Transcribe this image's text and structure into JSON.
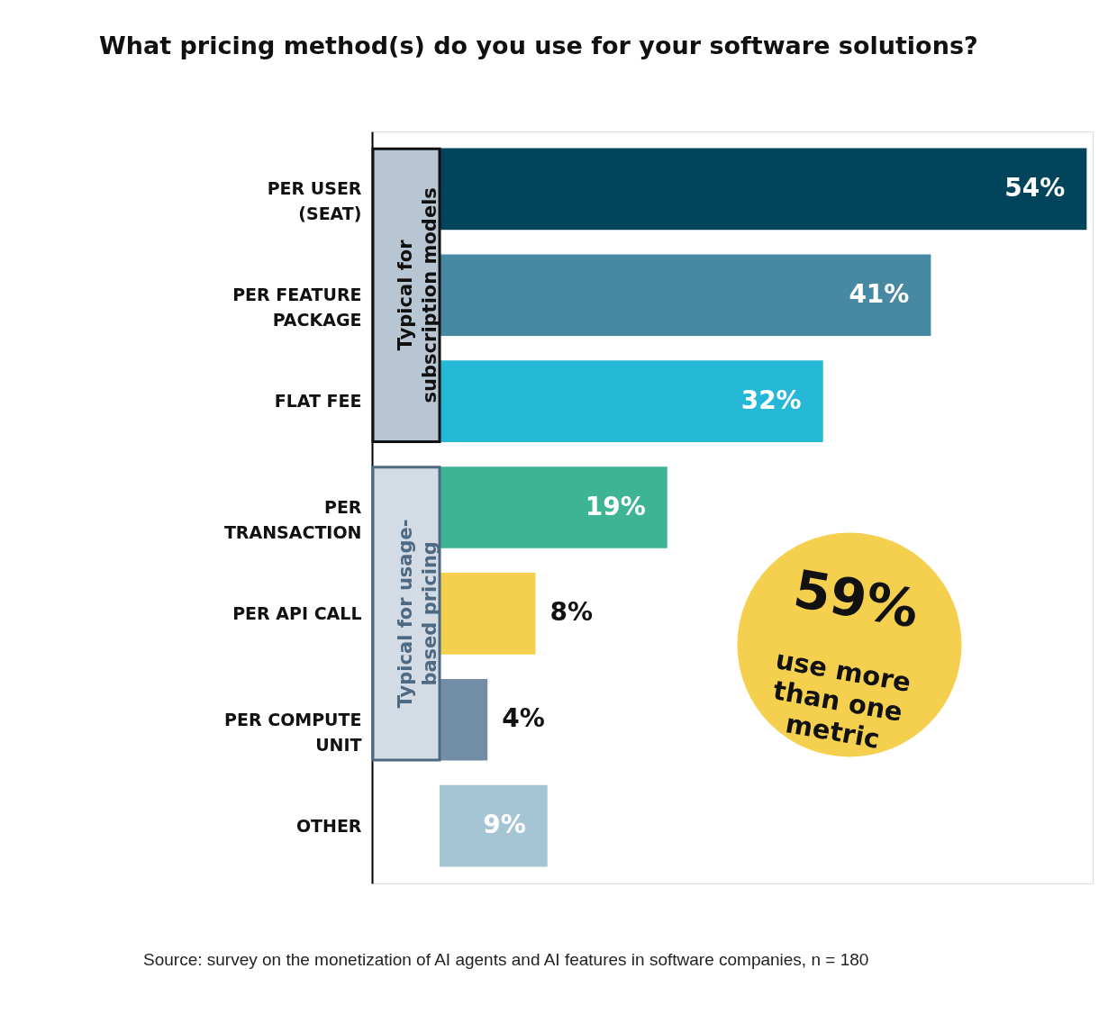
{
  "chart_data": {
    "type": "bar",
    "orientation": "horizontal",
    "title": "What pricing method(s) do you use for your software solutions?",
    "categories": [
      "PER USER (SEAT)",
      "PER FEATURE PACKAGE",
      "FLAT FEE",
      "PER TRANSACTION",
      "PER API CALL",
      "PER COMPUTE UNIT",
      "OTHER"
    ],
    "values": [
      54,
      41,
      32,
      19,
      8,
      4,
      9
    ],
    "colors": [
      "#02445c",
      "#4788a2",
      "#25b8d6",
      "#3db595",
      "#f5d04f",
      "#718ea6",
      "#a5c4d4"
    ],
    "value_labels": [
      "54%",
      "41%",
      "32%",
      "19%",
      "8%",
      "4%",
      "9%"
    ],
    "xlim": [
      0,
      54.5
    ],
    "tick_labels": "y",
    "grid": false,
    "annotations": [
      "59%",
      "use more\nthan one\nmetric",
      "Source: survey on the monetization of AI agents and AI features in software companies, n = 180",
      "Typical for\nsubscription models",
      "Typical for usage-\nbased pricing"
    ]
  }
}
